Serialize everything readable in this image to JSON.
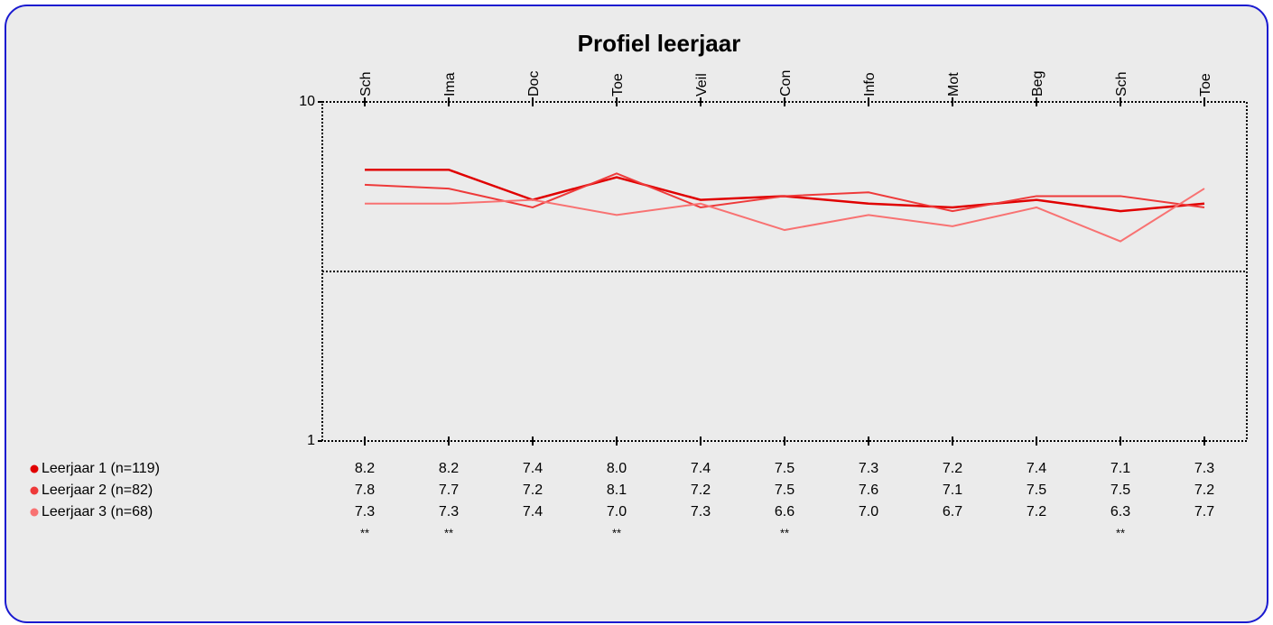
{
  "chart_data": {
    "type": "line",
    "title": "Profiel leerjaar",
    "categories": [
      "Sch",
      "Ima",
      "Doc",
      "Toe",
      "Veil",
      "Con",
      "Info",
      "Mot",
      "Beg",
      "Sch",
      "Toe"
    ],
    "series": [
      {
        "name": "Leerjaar 1 (n=119)",
        "color": "#e00000",
        "values": [
          8.2,
          8.2,
          7.4,
          8.0,
          7.4,
          7.5,
          7.3,
          7.2,
          7.4,
          7.1,
          7.3
        ],
        "value_labels": [
          "8.2",
          "8.2",
          "7.4",
          "8.0",
          "7.4",
          "7.5",
          "7.3",
          "7.2",
          "7.4",
          "7.1",
          "7.3"
        ]
      },
      {
        "name": "Leerjaar 2 (n=82)",
        "color": "#ee3a3a",
        "values": [
          7.8,
          7.7,
          7.2,
          8.1,
          7.2,
          7.5,
          7.6,
          7.1,
          7.5,
          7.5,
          7.2
        ],
        "value_labels": [
          "7.8",
          "7.7",
          "7.2",
          "8.1",
          "7.2",
          "7.5",
          "7.6",
          "7.1",
          "7.5",
          "7.5",
          "7.2"
        ]
      },
      {
        "name": "Leerjaar 3 (n=68)",
        "color": "#f87272",
        "values": [
          7.3,
          7.3,
          7.4,
          7.0,
          7.3,
          6.6,
          7.0,
          6.7,
          7.2,
          6.3,
          7.7
        ],
        "value_labels": [
          "7.3",
          "7.3",
          "7.4",
          "7.0",
          "7.3",
          "6.6",
          "7.0",
          "6.7",
          "7.2",
          "6.3",
          "7.7"
        ]
      }
    ],
    "significance": [
      "**",
      "**",
      null,
      "**",
      null,
      "**",
      null,
      null,
      null,
      "**",
      null
    ],
    "reference_line": 5.5,
    "ylim": [
      1,
      10
    ],
    "yticks": [
      1,
      10
    ]
  }
}
